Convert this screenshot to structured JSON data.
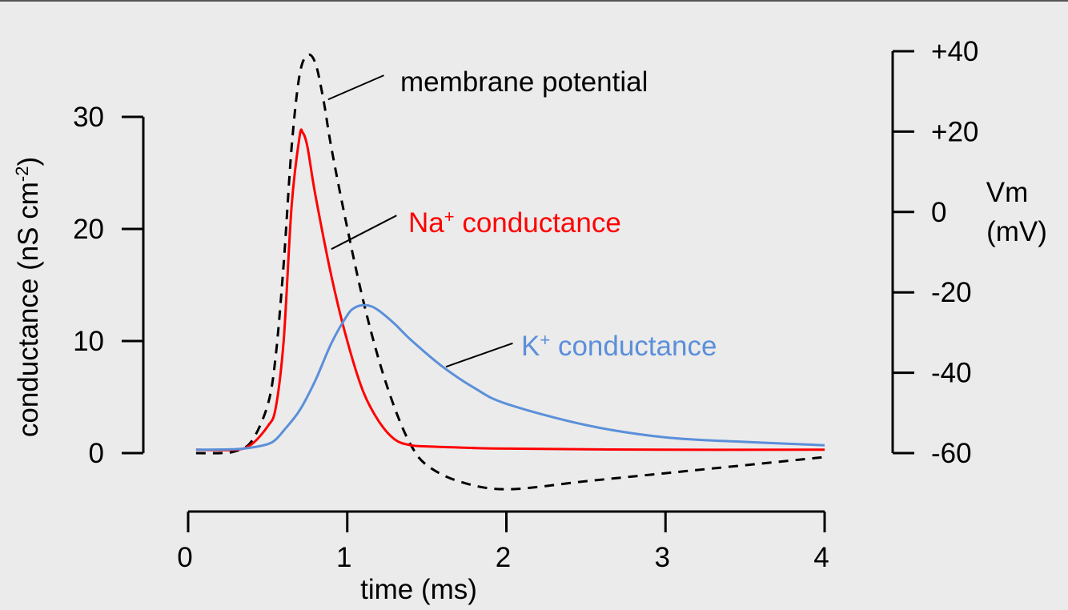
{
  "chart_data": {
    "type": "line",
    "x_axis": {
      "label": "time (ms)",
      "range": [
        0,
        4
      ],
      "ticks": [
        0,
        1,
        2,
        3,
        4
      ],
      "tick_labels": [
        "0",
        "1",
        "2",
        "3",
        "4"
      ]
    },
    "y_left": {
      "label_main": "conductance (nS cm",
      "label_sup": "-2",
      "label_close": ")",
      "range": [
        0,
        30
      ],
      "ticks": [
        0,
        10,
        20,
        30
      ],
      "tick_labels": [
        "0",
        "10",
        "20",
        "30"
      ]
    },
    "y_right": {
      "label_line1": "Vm",
      "label_line2": "(mV)",
      "range": [
        -60,
        40
      ],
      "ticks": [
        -60,
        -40,
        -20,
        0,
        20,
        40
      ],
      "tick_labels": [
        "-60",
        "-40",
        "-20",
        "0",
        "+20",
        "+40"
      ]
    },
    "series": [
      {
        "id": "vm",
        "name": "membrane potential",
        "axis": "right",
        "color": "#000000",
        "dashed": true,
        "x": [
          0.05,
          0.2,
          0.3,
          0.4,
          0.5,
          0.55,
          0.6,
          0.65,
          0.7,
          0.75,
          0.8,
          0.85,
          0.9,
          1.0,
          1.1,
          1.2,
          1.3,
          1.4,
          1.5,
          1.7,
          2.0,
          2.5,
          3.0,
          3.5,
          4.0
        ],
        "y": [
          -60,
          -60,
          -59.5,
          -57,
          -48,
          -36,
          -13,
          16,
          34,
          39,
          37,
          28,
          16,
          -4,
          -22,
          -37,
          -49,
          -58,
          -63,
          -67,
          -69,
          -67,
          -65,
          -63,
          -61
        ]
      },
      {
        "id": "na",
        "name_main": "Na",
        "name_sup": "+",
        "name_rest": " conductance",
        "axis": "left",
        "color": "#ff0000",
        "dashed": false,
        "x": [
          0.05,
          0.3,
          0.4,
          0.5,
          0.55,
          0.6,
          0.65,
          0.7,
          0.72,
          0.75,
          0.8,
          0.9,
          1.0,
          1.1,
          1.2,
          1.3,
          1.4,
          1.5,
          1.7,
          2.0,
          3.0,
          4.0
        ],
        "y": [
          0.3,
          0.3,
          0.8,
          2.4,
          4,
          10,
          22,
          28.2,
          28.6,
          27.3,
          23,
          15.8,
          10,
          5.5,
          2.8,
          1.2,
          0.7,
          0.6,
          0.5,
          0.4,
          0.3,
          0.3
        ]
      },
      {
        "id": "k",
        "name_main": "K",
        "name_sup": "+",
        "name_rest": " conductance",
        "axis": "left",
        "color": "#5b8fd9",
        "dashed": false,
        "x": [
          0.05,
          0.3,
          0.4,
          0.5,
          0.55,
          0.6,
          0.7,
          0.8,
          0.9,
          1.0,
          1.05,
          1.1,
          1.15,
          1.2,
          1.3,
          1.4,
          1.6,
          1.8,
          2.0,
          2.5,
          3.0,
          3.5,
          4.0
        ],
        "y": [
          0.3,
          0.35,
          0.5,
          0.8,
          1.2,
          2,
          3.8,
          6.5,
          9.8,
          12.3,
          13,
          13.2,
          13.1,
          12.7,
          11.5,
          10.1,
          7.7,
          5.8,
          4.4,
          2.5,
          1.4,
          1.0,
          0.7
        ]
      }
    ],
    "annotations": [
      {
        "series": "vm",
        "from": [
          0.88,
          28
        ],
        "to": [
          1.23,
          34
        ]
      },
      {
        "series": "na",
        "from": [
          0.9,
          18.2
        ],
        "to": [
          1.31,
          21.2
        ]
      },
      {
        "series": "k",
        "from": [
          1.62,
          7.7
        ],
        "to": [
          2.04,
          9.8
        ]
      }
    ]
  }
}
